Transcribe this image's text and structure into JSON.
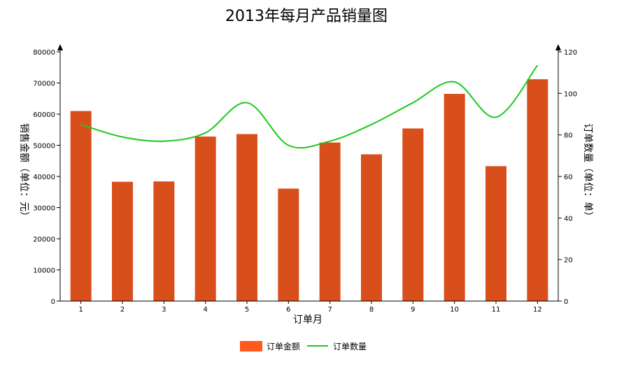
{
  "chart_data": {
    "type": "bar",
    "title": "2013年每月产品销量图",
    "xlabel": "订单月",
    "ylabel_left": "销售金额（单位：元）",
    "ylabel_right": "订单数量（单位：单）",
    "categories": [
      "1",
      "2",
      "3",
      "4",
      "5",
      "6",
      "7",
      "8",
      "9",
      "10",
      "11",
      "12"
    ],
    "ylim_left": [
      0,
      80000
    ],
    "yticks_left": [
      "0",
      "10000",
      "20000",
      "30000",
      "40000",
      "50000",
      "60000",
      "70000",
      "80000"
    ],
    "ylim_right": [
      0,
      120
    ],
    "yticks_right": [
      "0",
      "20",
      "40",
      "60",
      "80",
      "100",
      "120"
    ],
    "series": [
      {
        "name": "订单金额",
        "type": "bar",
        "axis": "left",
        "color": "#d94f1c",
        "values": [
          61000,
          38300,
          38400,
          52800,
          53600,
          36100,
          50900,
          47100,
          55400,
          66500,
          43300,
          71200
        ]
      },
      {
        "name": "订单数量",
        "type": "line",
        "axis": "right",
        "color": "#1ec81e",
        "smooth": true,
        "values": [
          85,
          79,
          77,
          81,
          95.5,
          75,
          77,
          85,
          95.5,
          105.5,
          88.5,
          113.5
        ]
      }
    ],
    "legend_position": "bottom-center",
    "grid": false
  }
}
